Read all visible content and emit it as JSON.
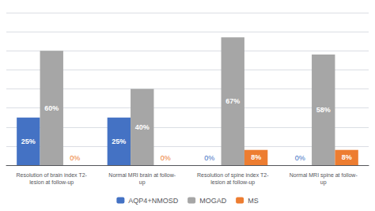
{
  "chart_data": {
    "type": "bar",
    "categories": [
      "Resolution of brain index T2-\nlesion at follow-up",
      "Normal MRI brain at follow-\nup",
      "Resolution of spine index T2-\nlesion at follow-up",
      "Normal MRI spine at follow-\nup"
    ],
    "series": [
      {
        "name": "AQP4+NMOSD",
        "color": "#4472c4",
        "values": [
          25,
          25,
          0,
          0
        ],
        "value_labels": [
          "25%",
          "25%",
          "0%",
          "0%"
        ]
      },
      {
        "name": "MOGAD",
        "color": "#a6a6a6",
        "values": [
          60,
          40,
          67,
          58
        ],
        "value_labels": [
          "60%",
          "40%",
          "67%",
          "58%"
        ]
      },
      {
        "name": "MS",
        "color": "#ed7d31",
        "values": [
          0,
          0,
          8,
          8
        ],
        "value_labels": [
          "0%",
          "0%",
          "8%",
          "8%"
        ]
      }
    ],
    "ylim": [
      0,
      80
    ],
    "yticks": [
      0,
      10,
      20,
      30,
      40,
      50,
      60,
      70,
      80
    ],
    "grid": true,
    "legend": "bottom",
    "data_labels": true,
    "tick_labels": "x"
  }
}
